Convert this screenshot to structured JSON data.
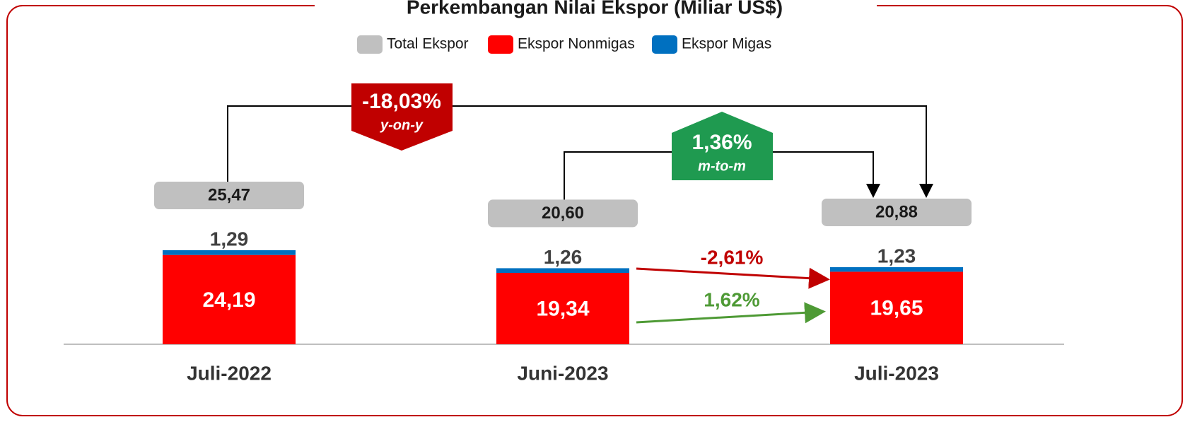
{
  "chart_data": {
    "type": "stacked_bar",
    "title": "Perkembangan Nilai Ekspor (Miliar US$)",
    "categories": [
      "Juli-2022",
      "Juni-2023",
      "Juli-2023"
    ],
    "series": [
      {
        "name": "Ekspor Nonmigas",
        "color": "#ff0000",
        "values": [
          24.19,
          19.34,
          19.65
        ],
        "value_labels": [
          "24,19",
          "19,34",
          "19,65"
        ]
      },
      {
        "name": "Ekspor Migas",
        "color": "#0070c0",
        "values": [
          1.29,
          1.26,
          1.23
        ],
        "value_labels": [
          "1,29",
          "1,26",
          "1,23"
        ]
      }
    ],
    "total": {
      "name": "Total Ekspor",
      "color": "#c0c0c0",
      "values": [
        25.47,
        20.6,
        20.88
      ],
      "value_labels": [
        "25,47",
        "20,60",
        "20,88"
      ]
    },
    "annotations": [
      "-18,03%",
      "y-on-y",
      "1,36%",
      "m-to-m",
      "-2,61%",
      "1,62%"
    ]
  }
}
